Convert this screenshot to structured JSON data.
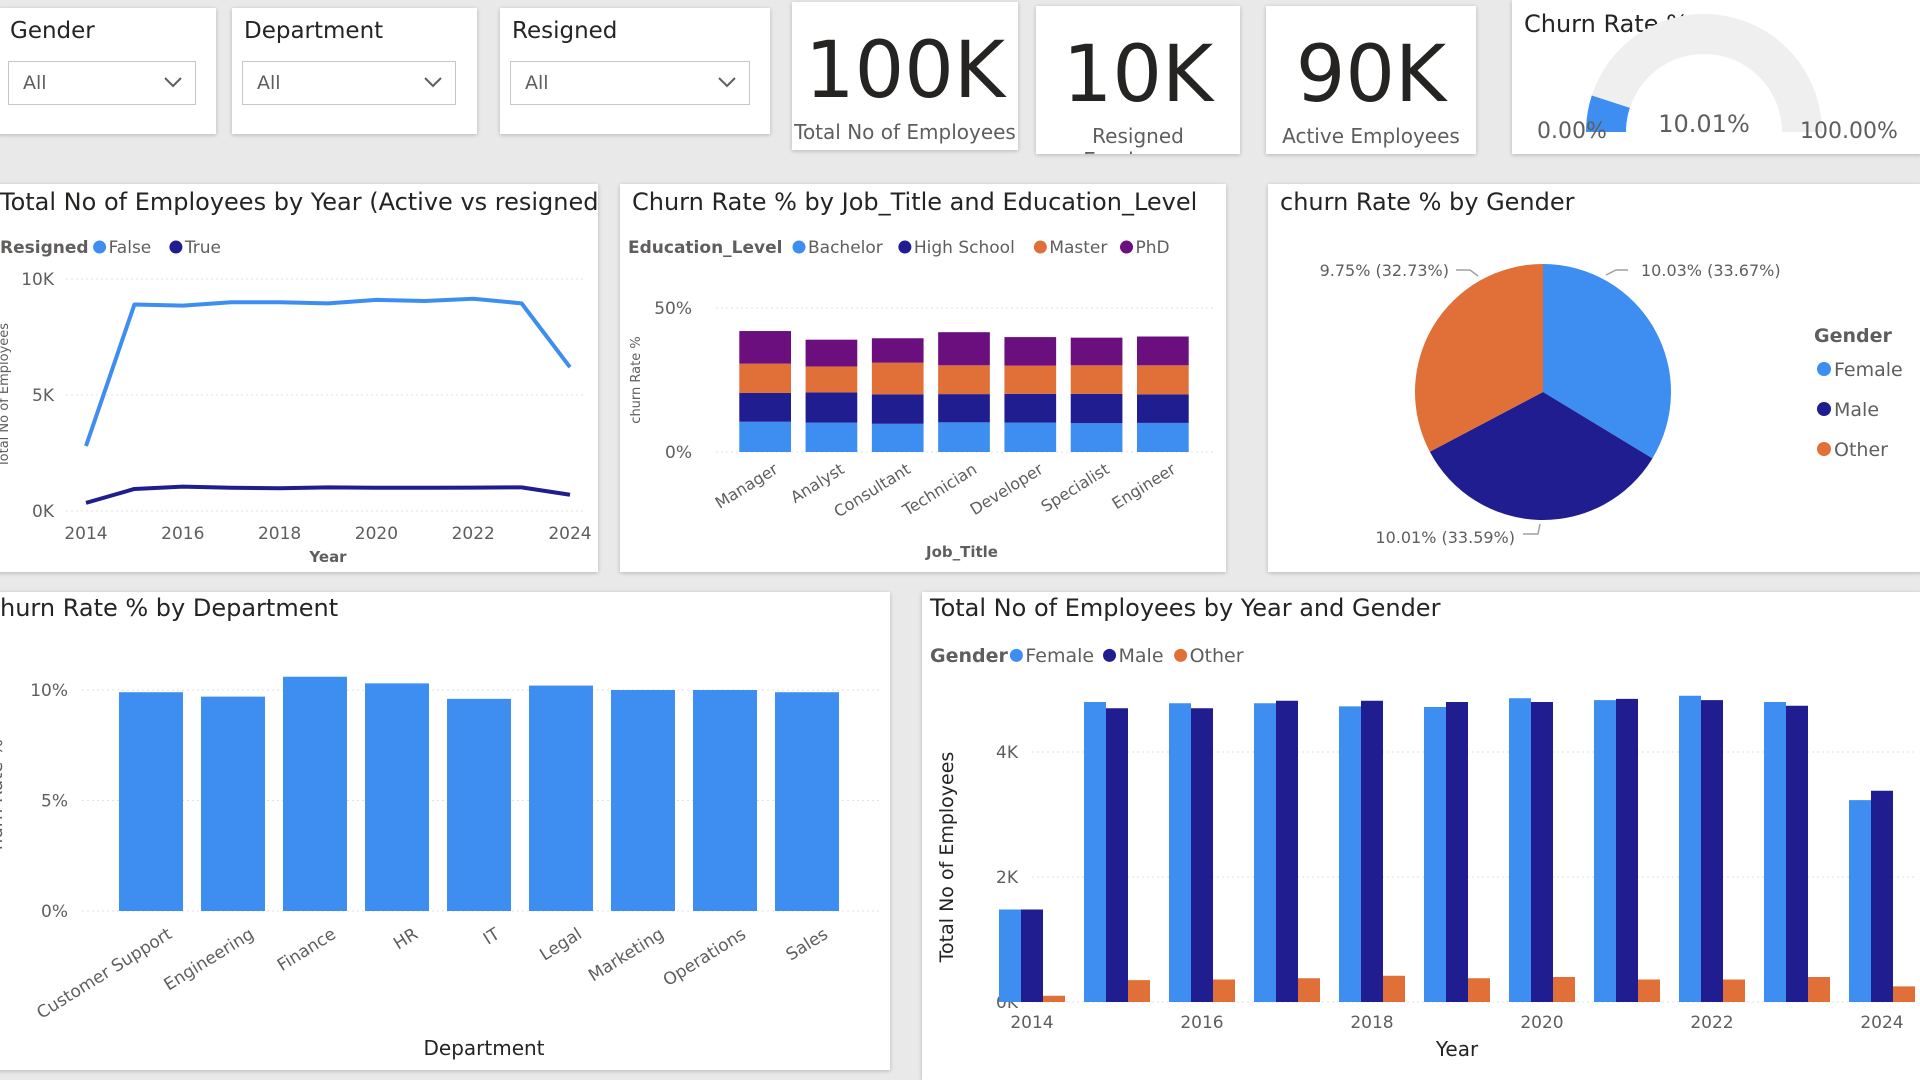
{
  "slicers": [
    {
      "title": "Gender",
      "value": "All"
    },
    {
      "title": "Department",
      "value": "All"
    },
    {
      "title": "Resigned",
      "value": "All"
    }
  ],
  "kpis": [
    {
      "value": "100K",
      "label": "Total No of Employees"
    },
    {
      "value": "10K",
      "label": "Resigned Employees"
    },
    {
      "value": "90K",
      "label": "Active Employees"
    }
  ],
  "gauge": {
    "title": "Churn Rate %",
    "min_label": "0.00%",
    "max_label": "100.00%",
    "value_label": "10.01%",
    "value": 10.01,
    "min": 0,
    "max": 100,
    "fill_color": "#3d8ef0",
    "track_color": "#efefef"
  },
  "colors": {
    "light_blue": "#3d8ef0",
    "dark_blue": "#1f1d8f",
    "orange": "#e07038",
    "purple": "#6b0f7f"
  },
  "chart_data": [
    {
      "id": "line",
      "type": "line",
      "title": "Total No of Employees by Year (Active vs resigned)",
      "legend_title": "Resigned",
      "xlabel": "Year",
      "ylabel": "Total No of Employees",
      "x": [
        2014,
        2015,
        2016,
        2017,
        2018,
        2019,
        2020,
        2021,
        2022,
        2023,
        2024
      ],
      "xticks": [
        "2014",
        "2016",
        "2018",
        "2020",
        "2022",
        "2024"
      ],
      "yticks": [
        "10K",
        "5K",
        "0K"
      ],
      "ylim": [
        0,
        10000
      ],
      "series": [
        {
          "name": "False",
          "color": "#3d8ef0",
          "values": [
            2800,
            8900,
            8850,
            9000,
            9000,
            8950,
            9100,
            9050,
            9150,
            8950,
            6200
          ]
        },
        {
          "name": "True",
          "color": "#1f1d8f",
          "values": [
            350,
            950,
            1050,
            1000,
            980,
            1020,
            1000,
            1000,
            1010,
            1020,
            700
          ]
        }
      ],
      "legend_position": "top-left"
    },
    {
      "id": "stacked",
      "type": "bar",
      "stacked": true,
      "title": "Churn Rate % by Job_Title and Education_Level",
      "legend_title": "Education_Level",
      "xlabel": "Job_Title",
      "ylabel": "churn Rate %",
      "categories": [
        "Manager",
        "Analyst",
        "Consultant",
        "Technician",
        "Developer",
        "Specialist",
        "Engineer"
      ],
      "yticks": [
        "50%",
        "0%"
      ],
      "ylim": [
        0,
        50
      ],
      "series": [
        {
          "name": "Bachelor",
          "color": "#3d8ef0",
          "values": [
            10.5,
            10.2,
            9.8,
            10.3,
            10.2,
            10.0,
            10.1
          ]
        },
        {
          "name": "High School",
          "color": "#1f1d8f",
          "values": [
            10.0,
            10.5,
            10.2,
            9.8,
            10.0,
            10.2,
            9.9
          ]
        },
        {
          "name": "Master",
          "color": "#e07038",
          "values": [
            10.2,
            9.0,
            11.0,
            10.0,
            9.8,
            9.9,
            10.1
          ]
        },
        {
          "name": "PhD",
          "color": "#6b0f7f",
          "values": [
            11.3,
            9.3,
            8.5,
            11.5,
            9.9,
            9.6,
            10.0
          ]
        }
      ],
      "legend_position": "top-left"
    },
    {
      "id": "pie",
      "type": "pie",
      "title": "churn Rate % by Gender",
      "legend_title": "Gender",
      "slices": [
        {
          "name": "Female",
          "value": 33.67,
          "label": "10.03% (33.67%)",
          "color": "#3d8ef0"
        },
        {
          "name": "Male",
          "value": 33.59,
          "label": "10.01% (33.59%)",
          "color": "#1f1d8f"
        },
        {
          "name": "Other",
          "value": 32.73,
          "label": "9.75% (32.73%)",
          "color": "#e07038"
        }
      ],
      "legend_position": "right"
    },
    {
      "id": "dept",
      "type": "bar",
      "title": "hurn Rate % by Department",
      "xlabel": "Department",
      "ylabel": "hurn Rate %",
      "categories": [
        "Customer Support",
        "Engineering",
        "Finance",
        "HR",
        "IT",
        "Legal",
        "Marketing",
        "Operations",
        "Sales"
      ],
      "values": [
        9.9,
        9.7,
        10.6,
        10.3,
        9.6,
        10.2,
        10.0,
        10.0,
        9.9
      ],
      "yticks": [
        "10%",
        "5%",
        "0%"
      ],
      "ylim": [
        0,
        11
      ],
      "color": "#3d8ef0"
    },
    {
      "id": "grouped",
      "type": "bar",
      "title": "Total No of Employees by Year and Gender",
      "legend_title": "Gender",
      "xlabel": "Year",
      "ylabel": "Total No of Employees",
      "categories": [
        2014,
        2015,
        2016,
        2017,
        2018,
        2019,
        2020,
        2021,
        2022,
        2023,
        2024
      ],
      "xticks": [
        "2014",
        "2016",
        "2018",
        "2020",
        "2022",
        "2024"
      ],
      "yticks": [
        "4K",
        "2K",
        "0K"
      ],
      "ylim": [
        0,
        5000
      ],
      "series": [
        {
          "name": "Female",
          "color": "#3d8ef0",
          "values": [
            1480,
            4800,
            4780,
            4780,
            4730,
            4720,
            4860,
            4830,
            4900,
            4800,
            3230
          ]
        },
        {
          "name": "Male",
          "color": "#1f1d8f",
          "values": [
            1480,
            4700,
            4700,
            4820,
            4820,
            4800,
            4800,
            4850,
            4830,
            4740,
            3380
          ]
        },
        {
          "name": "Other",
          "color": "#e07038",
          "values": [
            100,
            350,
            360,
            380,
            420,
            380,
            400,
            360,
            360,
            400,
            250
          ]
        }
      ],
      "legend_position": "top-left"
    }
  ]
}
